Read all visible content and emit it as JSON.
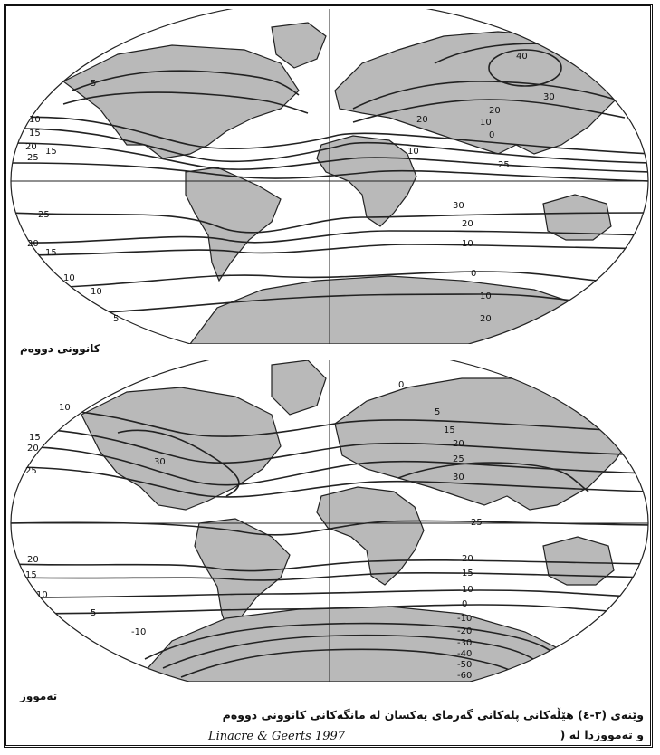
{
  "maps": [
    {
      "label": "کانوونی دووەم",
      "isotherm_labels": [
        "40",
        "30",
        "20",
        "10",
        "0",
        "25",
        "15",
        "10",
        "5",
        "25",
        "20",
        "15",
        "10",
        "0",
        "10",
        "20",
        "30",
        "20",
        "10",
        "25",
        "20",
        "15",
        "10",
        "5",
        "10",
        "20"
      ]
    },
    {
      "label": "تەمووز",
      "isotherm_labels": [
        "10",
        "15",
        "20",
        "25",
        "30",
        "0",
        "5",
        "15",
        "20",
        "25",
        "30",
        "25",
        "20",
        "15",
        "10",
        "0",
        "-10",
        "-20",
        "-30",
        "-40",
        "-50",
        "-60",
        "20",
        "15",
        "10",
        "5",
        "-10"
      ]
    }
  ],
  "caption": {
    "line1": "وێنەی (٣-٤) هێڵەکانی پلەکانی گەرمای یەکسان لە مانگەکانی کانوونی دووەم",
    "line2": "و تەمووزدا لە (",
    "source": "Linacre & Geerts 1997"
  },
  "colors": {
    "land": "#b9b9b9",
    "ink": "#1a1a1a",
    "paper": "#ffffff"
  }
}
